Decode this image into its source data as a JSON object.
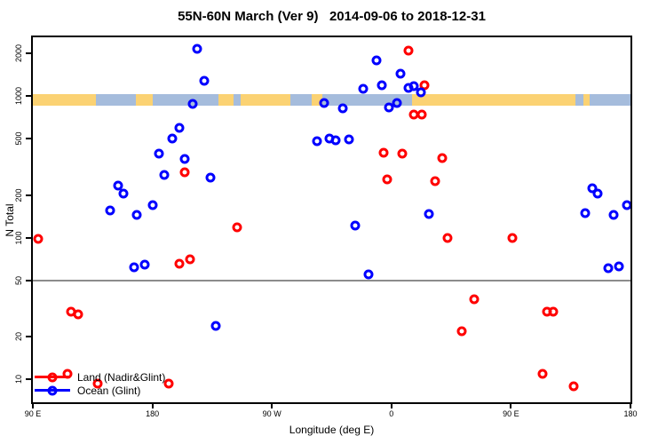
{
  "title": "55N-60N March (Ver 9)   2014-09-06 to 2018-12-31",
  "chart_data": {
    "type": "scatter",
    "title": "55N-60N March (Ver 9)   2014-09-06 to 2018-12-31",
    "xlabel": "Longitude (deg E)",
    "ylabel": "N Total",
    "x_axis": {
      "range": [
        90,
        540
      ],
      "note": "longitude axis wraps eastward 90E-180-90W-0-90E-180",
      "ticks": [
        {
          "value": 90,
          "label": "90 E"
        },
        {
          "value": 180,
          "label": "180"
        },
        {
          "value": 270,
          "label": "90 W"
        },
        {
          "value": 360,
          "label": "0"
        },
        {
          "value": 450,
          "label": "90 E"
        },
        {
          "value": 540,
          "label": "180"
        }
      ]
    },
    "y_axis": {
      "scale": "log",
      "range": [
        6.9,
        2600
      ],
      "ticks": [
        {
          "value": 10,
          "label": "10"
        },
        {
          "value": 20,
          "label": "20"
        },
        {
          "value": 50,
          "label": "50"
        },
        {
          "value": 100,
          "label": "100"
        },
        {
          "value": 200,
          "label": "200"
        },
        {
          "value": 500,
          "label": "500"
        },
        {
          "value": 1000,
          "label": "1000"
        },
        {
          "value": 2000,
          "label": "2000"
        }
      ]
    },
    "reference_line": {
      "value": 50,
      "color": "#8c8c8c"
    },
    "map_strip": {
      "top_value": 1030,
      "bottom_value": 855,
      "land_color": "#FBD273",
      "ocean_color": "#A5BCDC",
      "segments": [
        [
          0.0,
          0.106,
          "land"
        ],
        [
          0.106,
          0.173,
          "ocean"
        ],
        [
          0.173,
          0.2,
          "land"
        ],
        [
          0.2,
          0.31,
          "ocean"
        ],
        [
          0.31,
          0.336,
          "land"
        ],
        [
          0.336,
          0.348,
          "ocean"
        ],
        [
          0.348,
          0.431,
          "land"
        ],
        [
          0.431,
          0.466,
          "ocean"
        ],
        [
          0.466,
          0.484,
          "land"
        ],
        [
          0.484,
          0.635,
          "ocean"
        ],
        [
          0.635,
          0.908,
          "land"
        ],
        [
          0.908,
          0.921,
          "ocean"
        ],
        [
          0.921,
          0.932,
          "land"
        ],
        [
          0.932,
          1.0,
          "ocean"
        ]
      ]
    },
    "point_format": [
      "longitude_axis_deg",
      "n_total"
    ],
    "series": [
      {
        "name": "Land (Nadir&Glint)",
        "color": "#FF0000",
        "symbol": "open-circle",
        "points": [
          [
            94,
            98
          ],
          [
            116,
            11
          ],
          [
            119,
            30
          ],
          [
            124,
            29
          ],
          [
            139,
            9.4
          ],
          [
            192,
            9.4
          ],
          [
            200,
            66
          ],
          [
            208,
            71
          ],
          [
            204,
            290
          ],
          [
            244,
            118
          ],
          [
            354,
            400
          ],
          [
            357,
            260
          ],
          [
            368,
            395
          ],
          [
            373,
            2100
          ],
          [
            377,
            740
          ],
          [
            383,
            740
          ],
          [
            385,
            1200
          ],
          [
            393,
            250
          ],
          [
            398,
            365
          ],
          [
            402,
            100
          ],
          [
            413,
            22
          ],
          [
            422,
            37
          ],
          [
            451,
            99
          ],
          [
            474,
            11
          ],
          [
            477,
            30
          ],
          [
            482,
            30
          ],
          [
            497,
            9
          ]
        ]
      },
      {
        "name": "Ocean (Glint)",
        "color": "#0000FF",
        "symbol": "open-circle",
        "points": [
          [
            148,
            155
          ],
          [
            154,
            235
          ],
          [
            158,
            205
          ],
          [
            166,
            62
          ],
          [
            168,
            145
          ],
          [
            174,
            65
          ],
          [
            180,
            170
          ],
          [
            185,
            390
          ],
          [
            189,
            278
          ],
          [
            195,
            500
          ],
          [
            200,
            600
          ],
          [
            204,
            360
          ],
          [
            210,
            880
          ],
          [
            214,
            2150
          ],
          [
            219,
            1280
          ],
          [
            224,
            265
          ],
          [
            228,
            24
          ],
          [
            304,
            480
          ],
          [
            309,
            890
          ],
          [
            313,
            500
          ],
          [
            318,
            490
          ],
          [
            323,
            820
          ],
          [
            328,
            495
          ],
          [
            333,
            122
          ],
          [
            339,
            1120
          ],
          [
            343,
            55
          ],
          [
            349,
            1800
          ],
          [
            353,
            1200
          ],
          [
            358,
            830
          ],
          [
            364,
            900
          ],
          [
            367,
            1450
          ],
          [
            373,
            1150
          ],
          [
            377,
            1170
          ],
          [
            382,
            1060
          ],
          [
            388,
            148
          ],
          [
            506,
            150
          ],
          [
            511,
            225
          ],
          [
            515,
            205
          ],
          [
            523,
            61
          ],
          [
            527,
            145
          ],
          [
            531,
            63
          ],
          [
            537,
            170
          ]
        ]
      }
    ],
    "legend": {
      "position": "bottom-left"
    }
  }
}
